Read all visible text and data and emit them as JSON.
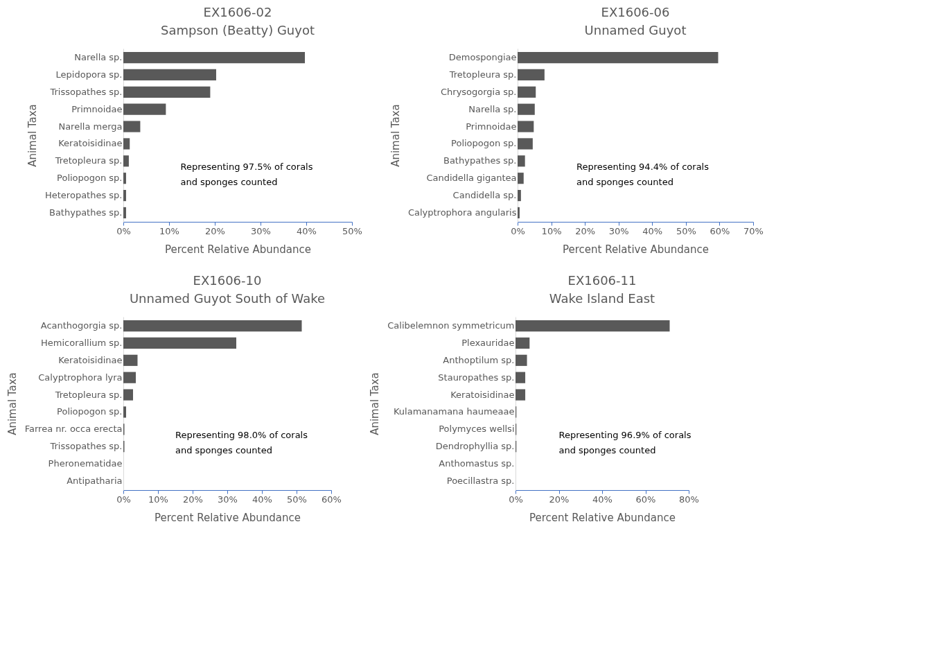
{
  "chart_data": [
    {
      "type": "bar",
      "orientation": "horizontal",
      "title": "EX1606-02",
      "subtitle": "Sampson (Beatty) Guyot",
      "xlabel": "Percent Relative Abundance",
      "ylabel": "Animal Taxa",
      "categories": [
        "Narella sp.",
        "Lepidopora sp.",
        "Trissopathes sp.",
        "Primnoidae",
        "Narella merga",
        "Keratoisidinae",
        "Tretopleura sp.",
        "Poliopogon sp.",
        "Heteropathes sp.",
        "Bathypathes sp."
      ],
      "values": [
        39.7,
        20.3,
        19.0,
        9.3,
        3.7,
        1.4,
        1.2,
        0.6,
        0.6,
        0.6
      ],
      "color": "#595959",
      "xlim": [
        0,
        50
      ],
      "xticks": [
        {
          "value": 0,
          "label": "0%"
        },
        {
          "value": 10,
          "label": "10%"
        },
        {
          "value": 20,
          "label": "20%"
        },
        {
          "value": 30,
          "label": "30%"
        },
        {
          "value": 40,
          "label": "40%"
        },
        {
          "value": 50,
          "label": "50%"
        }
      ],
      "grid": false,
      "annotations": [
        "Representing 97.5% of corals\nand sponges counted"
      ]
    },
    {
      "type": "bar",
      "orientation": "horizontal",
      "title": "EX1606-06",
      "subtitle": "Unnamed Guyot",
      "xlabel": "Percent Relative Abundance",
      "ylabel": "Animal Taxa",
      "categories": [
        "Demospongiae",
        "Tretopleura sp.",
        "Chrysogorgia sp.",
        "Narella sp.",
        "Primnoidae",
        "Poliopogon sp.",
        "Bathypathes sp.",
        "Candidella gigantea",
        "Candidella sp.",
        "Calyptrophora angularis"
      ],
      "values": [
        59.6,
        8.0,
        5.4,
        5.1,
        4.8,
        4.5,
        2.2,
        1.8,
        1.0,
        0.6
      ],
      "color": "#595959",
      "xlim": [
        0,
        70
      ],
      "xticks": [
        {
          "value": 0,
          "label": "0%"
        },
        {
          "value": 10,
          "label": "10%"
        },
        {
          "value": 20,
          "label": "20%"
        },
        {
          "value": 30,
          "label": "30%"
        },
        {
          "value": 40,
          "label": "40%"
        },
        {
          "value": 50,
          "label": "50%"
        },
        {
          "value": 60,
          "label": "60%"
        },
        {
          "value": 70,
          "label": "70%"
        }
      ],
      "grid": false,
      "annotations": [
        "Representing 94.4% of corals\nand sponges counted"
      ]
    },
    {
      "type": "bar",
      "orientation": "horizontal",
      "title": "EX1606-10",
      "subtitle": "Unnamed Guyot South  of Wake",
      "xlabel": "Percent Relative Abundance",
      "ylabel": "Animal Taxa",
      "categories": [
        "Acanthogorgia sp.",
        "Hemicorallium sp.",
        "Keratoisidinae",
        "Calyptrophora lyra",
        "Tretopleura sp.",
        "Poliopogon sp.",
        "Farrea nr. occa erecta",
        "Trissopathes sp.",
        "Pheronematidae",
        "Antipatharia"
      ],
      "values": [
        51.5,
        32.6,
        4.1,
        3.6,
        2.8,
        0.8,
        0.3,
        0.3,
        0,
        0
      ],
      "color": "#595959",
      "xlim": [
        0,
        60
      ],
      "xticks": [
        {
          "value": 0,
          "label": "0%"
        },
        {
          "value": 10,
          "label": "10%"
        },
        {
          "value": 20,
          "label": "20%"
        },
        {
          "value": 30,
          "label": "30%"
        },
        {
          "value": 40,
          "label": "40%"
        },
        {
          "value": 50,
          "label": "50%"
        },
        {
          "value": 60,
          "label": "60%"
        }
      ],
      "grid": false,
      "annotations": [
        "Representing 98.0% of corals\nand sponges counted"
      ]
    },
    {
      "type": "bar",
      "orientation": "horizontal",
      "title": "EX1606-11",
      "subtitle": "Wake Island East",
      "xlabel": "Percent Relative Abundance",
      "ylabel": "Animal Taxa",
      "categories": [
        "Calibelemnon symmetricum",
        "Plexauridae",
        "Anthoptilum sp.",
        "Stauropathes sp.",
        "Keratoisidinae",
        "Kulamanamana haumeaae",
        "Polymyces wellsi",
        "Dendrophyllia sp.",
        "Anthomastus sp.",
        "Poecillastra sp."
      ],
      "values": [
        71.2,
        6.5,
        5.3,
        4.5,
        4.5,
        0.4,
        0.4,
        0.4,
        0,
        0
      ],
      "color": "#595959",
      "xlim": [
        0,
        80
      ],
      "xticks": [
        {
          "value": 0,
          "label": "0%"
        },
        {
          "value": 20,
          "label": "20%"
        },
        {
          "value": 40,
          "label": "40%"
        },
        {
          "value": 60,
          "label": "60%"
        },
        {
          "value": 80,
          "label": "80%"
        }
      ],
      "grid": false,
      "annotations": [
        "Representing 96.9% of corals\nand sponges counted"
      ]
    }
  ]
}
